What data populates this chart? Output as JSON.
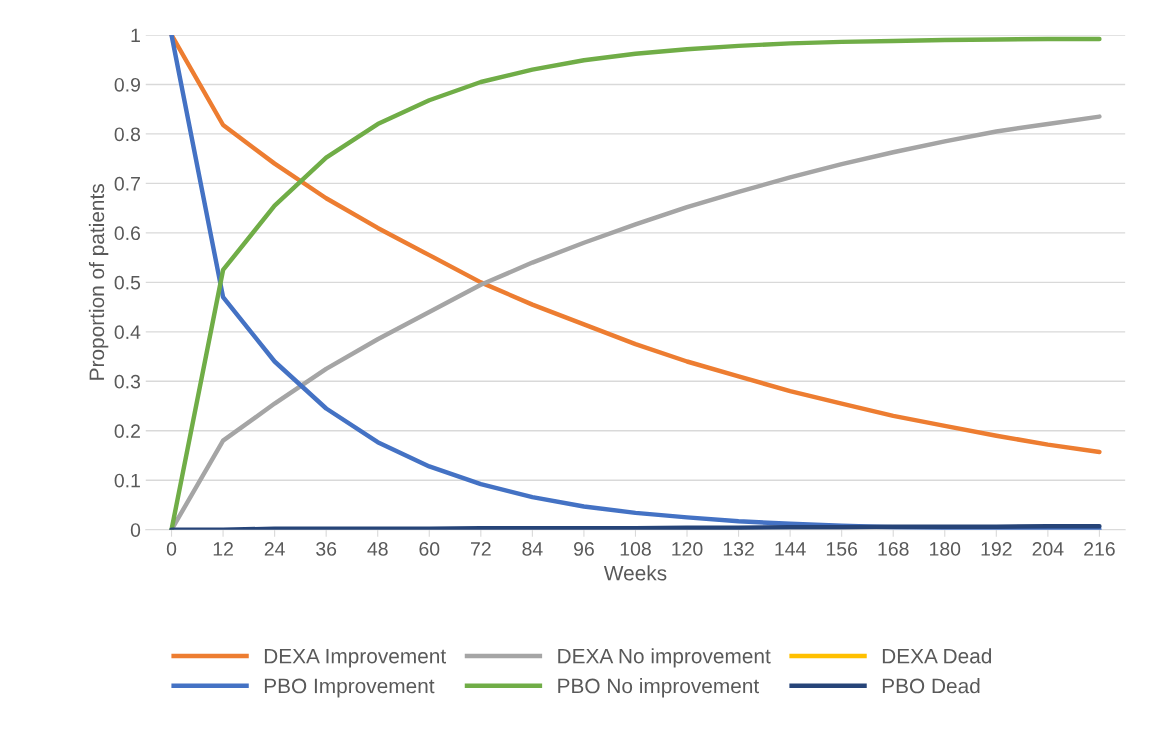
{
  "chart_data": {
    "type": "line",
    "xlabel": "Weeks",
    "ylabel": "Proportion of patients",
    "categories": [
      "0",
      "12",
      "24",
      "36",
      "48",
      "60",
      "72",
      "84",
      "96",
      "108",
      "120",
      "132",
      "144",
      "156",
      "168",
      "180",
      "192",
      "204",
      "216"
    ],
    "series": [
      {
        "name": "DEXA Improvement",
        "color": "#ed7d31",
        "values": [
          1,
          0.818,
          0.74,
          0.67,
          0.61,
          0.555,
          0.5,
          0.455,
          0.415,
          0.375,
          0.34,
          0.31,
          0.28,
          0.255,
          0.23,
          0.21,
          0.19,
          0.172,
          0.157
        ]
      },
      {
        "name": "DEXA No improvement",
        "color": "#a5a5a5",
        "values": [
          0,
          0.18,
          0.255,
          0.325,
          0.385,
          0.44,
          0.495,
          0.54,
          0.58,
          0.617,
          0.652,
          0.683,
          0.712,
          0.739,
          0.763,
          0.785,
          0.805,
          0.82,
          0.835
        ]
      },
      {
        "name": "DEXA Dead",
        "color": "#ffc000",
        "values": [
          null,
          null,
          null,
          null,
          null,
          null,
          null,
          null,
          null,
          null,
          null,
          null,
          null,
          null,
          null,
          null,
          null,
          null,
          null
        ]
      },
      {
        "name": "PBO Improvement",
        "color": "#4472c4",
        "values": [
          1,
          0.47,
          0.34,
          0.245,
          0.177,
          0.128,
          0.092,
          0.066,
          0.047,
          0.034,
          0.025,
          0.017,
          0.012,
          0.008,
          0.005,
          0.004,
          0.003,
          0.002,
          0.001
        ]
      },
      {
        "name": "PBO No improvement",
        "color": "#70ad47",
        "values": [
          0,
          0.525,
          0.655,
          0.752,
          0.82,
          0.868,
          0.905,
          0.93,
          0.949,
          0.962,
          0.971,
          0.978,
          0.983,
          0.986,
          0.988,
          0.99,
          0.991,
          0.992,
          0.992
        ]
      },
      {
        "name": "PBO Dead",
        "color": "#264478",
        "values": [
          0,
          0,
          0.002,
          0.002,
          0.002,
          0.002,
          0.003,
          0.003,
          0.003,
          0.003,
          0.004,
          0.004,
          0.005,
          0.005,
          0.006,
          0.006,
          0.006,
          0.007,
          0.007
        ]
      }
    ],
    "ylim": [
      0,
      1
    ],
    "yticks": [
      0,
      0.1,
      0.2,
      0.3,
      0.4,
      0.5,
      0.6,
      0.7,
      0.8,
      0.9,
      1
    ],
    "grid": "y",
    "legend": "bottom",
    "marker": "none",
    "line_style": "solid"
  }
}
